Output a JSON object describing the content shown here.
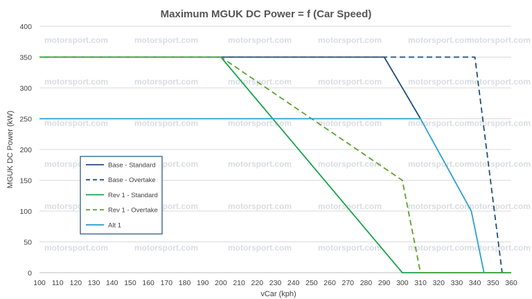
{
  "chart_data": {
    "type": "line",
    "title": "Maximum MGUK DC Power = f (Car Speed)",
    "xlabel": "vCar (kph)",
    "ylabel": "MGUK DC Power (kW)",
    "xlim": [
      100,
      360
    ],
    "ylim": [
      0,
      400
    ],
    "xticks": [
      100,
      110,
      120,
      130,
      140,
      150,
      160,
      170,
      180,
      190,
      200,
      210,
      220,
      230,
      240,
      250,
      260,
      270,
      280,
      290,
      300,
      310,
      320,
      330,
      340,
      350,
      360
    ],
    "yticks": [
      0,
      50,
      100,
      150,
      200,
      250,
      300,
      350,
      400
    ],
    "grid": true,
    "legend_position": "left-middle",
    "watermark": "motorsport.com",
    "series": [
      {
        "name": "Base - Standard",
        "color": "#1f4e79",
        "dash": "solid",
        "x": [
          100,
          290,
          310
        ],
        "y": [
          350,
          350,
          250
        ]
      },
      {
        "name": "Base - Overtake",
        "color": "#1f4e79",
        "dash": "dashed",
        "x": [
          100,
          340,
          355
        ],
        "y": [
          350,
          350,
          0
        ]
      },
      {
        "name": "Rev 1 - Standard",
        "color": "#16a34a",
        "dash": "solid",
        "x": [
          100,
          200,
          300,
          360
        ],
        "y": [
          350,
          350,
          0,
          0
        ]
      },
      {
        "name": "Rev 1 - Overtake",
        "color": "#5aa02c",
        "dash": "dashed",
        "x": [
          100,
          200,
          300,
          310,
          360
        ],
        "y": [
          350,
          350,
          150,
          0,
          0
        ]
      },
      {
        "name": "Alt 1",
        "color": "#2a9fd0",
        "dash": "solid",
        "x": [
          100,
          310,
          338,
          345
        ],
        "y": [
          250,
          250,
          100,
          0
        ]
      }
    ]
  }
}
